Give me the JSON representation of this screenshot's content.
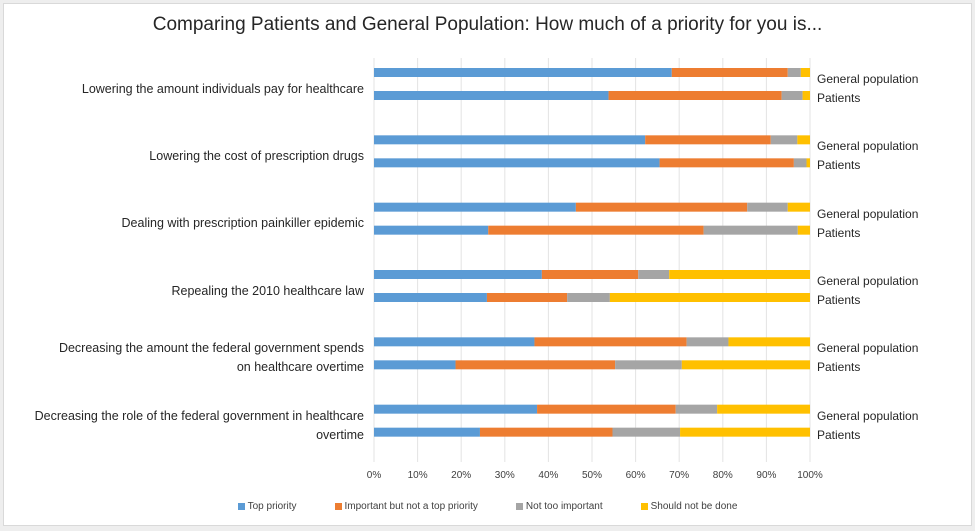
{
  "chart_data": {
    "type": "bar",
    "orientation": "horizontal",
    "stacked": "100%",
    "title": "Comparing Patients and General Population: How much of a priority for you is...",
    "xlabel": "",
    "ylabel": "",
    "xlim": [
      0,
      100
    ],
    "x_ticks": [
      "0%",
      "10%",
      "20%",
      "30%",
      "40%",
      "50%",
      "60%",
      "70%",
      "80%",
      "90%",
      "100%"
    ],
    "grid": "vertical",
    "legend_position": "bottom",
    "groups": [
      "General population",
      "Patients"
    ],
    "series": [
      {
        "name": "Top priority",
        "color": "#5b9bd5"
      },
      {
        "name": "Important but not a top priority",
        "color": "#ed7d31"
      },
      {
        "name": "Not too important",
        "color": "#a5a5a5"
      },
      {
        "name": "Should not be done",
        "color": "#ffc000"
      }
    ],
    "categories": [
      {
        "label": [
          "Lowering the amount individuals pay for healthcare"
        ],
        "General population": [
          68.3,
          26.6,
          3.0,
          2.1
        ],
        "Patients": [
          53.8,
          39.7,
          4.8,
          1.7
        ]
      },
      {
        "label": [
          "Lowering the cost of prescription drugs"
        ],
        "General population": [
          62.2,
          28.8,
          6.1,
          2.9
        ],
        "Patients": [
          65.5,
          30.8,
          2.9,
          0.8
        ]
      },
      {
        "label": [
          "Dealing with prescription painkiller epidemic"
        ],
        "General population": [
          46.3,
          39.3,
          9.3,
          5.1
        ],
        "Patients": [
          26.2,
          49.4,
          21.6,
          2.8
        ]
      },
      {
        "label": [
          "Repealing the 2010 healthcare law"
        ],
        "General population": [
          38.5,
          22.1,
          7.1,
          32.3
        ],
        "Patients": [
          25.9,
          18.4,
          9.8,
          45.9
        ]
      },
      {
        "label": [
          "Decreasing the amount the federal government spends",
          "on healthcare overtime"
        ],
        "General population": [
          36.8,
          34.9,
          9.6,
          18.7
        ],
        "Patients": [
          18.7,
          36.6,
          15.3,
          29.4
        ]
      },
      {
        "label": [
          "Decreasing the role of the federal government in healthcare",
          "overtime"
        ],
        "General population": [
          37.4,
          31.8,
          9.5,
          21.3
        ],
        "Patients": [
          24.3,
          30.4,
          15.5,
          29.8
        ]
      }
    ]
  }
}
